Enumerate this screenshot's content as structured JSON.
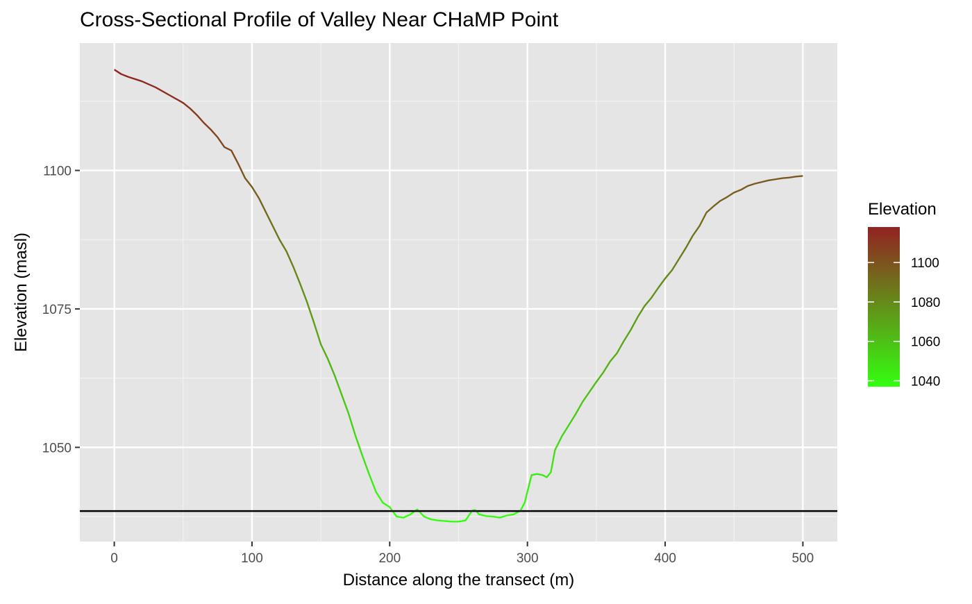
{
  "chart_data": {
    "type": "line",
    "title": "Cross-Sectional Profile of Valley Near CHaMP Point",
    "xlabel": "Distance along the transect (m)",
    "ylabel": "Elevation (masl)",
    "xlim": [
      -25,
      525
    ],
    "ylim": [
      1033,
      1123
    ],
    "x_ticks": [
      0,
      100,
      200,
      300,
      400,
      500
    ],
    "y_ticks": [
      1050,
      1075,
      1100
    ],
    "x_tick_labels": [
      "0",
      "100",
      "200",
      "300",
      "400",
      "500"
    ],
    "y_tick_labels": [
      "1050",
      "1075",
      "1100"
    ],
    "grid": true,
    "reference_line": {
      "y": 1038.5,
      "color": "#000000"
    },
    "legend": {
      "title": "Elevation",
      "position": "right",
      "gradient_low_color": "#33ff11",
      "gradient_high_color": "#922222",
      "range": [
        1037,
        1118
      ],
      "ticks": [
        1040,
        1060,
        1080,
        1100
      ],
      "tick_labels": [
        "1040",
        "1060",
        "1080",
        "1100"
      ]
    },
    "series": [
      {
        "x": [
          0,
          5,
          10,
          20,
          30,
          40,
          50,
          55,
          60,
          65,
          70,
          75,
          80,
          85,
          90,
          95,
          100,
          105,
          110,
          115,
          120,
          125,
          130,
          135,
          140,
          145,
          150,
          155,
          160,
          165,
          170,
          175,
          180,
          185,
          190,
          195,
          200,
          205,
          210,
          215,
          220,
          225,
          230,
          235,
          240,
          245,
          250,
          255,
          260,
          262,
          265,
          270,
          275,
          280,
          285,
          290,
          295,
          298,
          300,
          303,
          307,
          311,
          314,
          317,
          320,
          325,
          330,
          335,
          340,
          345,
          350,
          355,
          360,
          365,
          370,
          375,
          380,
          385,
          390,
          395,
          400,
          405,
          410,
          415,
          420,
          425,
          430,
          435,
          440,
          445,
          450,
          455,
          460,
          465,
          470,
          475,
          480,
          485,
          490,
          495,
          500
        ],
        "y": [
          1118.2,
          1117.4,
          1116.9,
          1116.1,
          1115.0,
          1113.6,
          1112.2,
          1111.2,
          1110.0,
          1108.6,
          1107.4,
          1106.0,
          1104.2,
          1103.6,
          1101.2,
          1098.6,
          1097.0,
          1095.0,
          1092.5,
          1090.0,
          1087.5,
          1085.4,
          1082.6,
          1079.5,
          1076.2,
          1072.5,
          1068.6,
          1066.0,
          1063.0,
          1059.6,
          1056.2,
          1052.2,
          1048.6,
          1045.2,
          1042.0,
          1040.0,
          1039.2,
          1037.5,
          1037.3,
          1037.9,
          1038.8,
          1037.5,
          1037.0,
          1036.8,
          1036.7,
          1036.6,
          1036.6,
          1036.8,
          1038.6,
          1038.7,
          1037.9,
          1037.6,
          1037.5,
          1037.3,
          1037.7,
          1037.9,
          1038.6,
          1040.0,
          1042.0,
          1045.0,
          1045.2,
          1045.0,
          1044.6,
          1045.5,
          1049.5,
          1052.0,
          1054.0,
          1056.0,
          1058.2,
          1060.0,
          1061.8,
          1063.5,
          1065.5,
          1067.0,
          1069.2,
          1071.2,
          1073.5,
          1075.5,
          1077.0,
          1078.8,
          1080.5,
          1082.0,
          1084.0,
          1086.0,
          1088.2,
          1090.0,
          1092.4,
          1093.5,
          1094.5,
          1095.2,
          1096.0,
          1096.5,
          1097.2,
          1097.6,
          1097.9,
          1098.2,
          1098.4,
          1098.6,
          1098.7,
          1098.9,
          1099.0
        ]
      }
    ]
  }
}
